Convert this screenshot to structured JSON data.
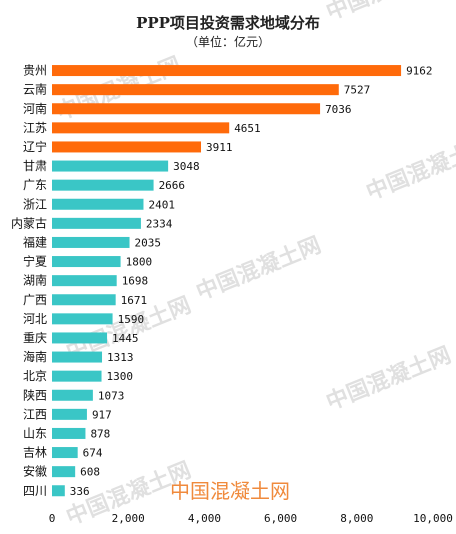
{
  "chart_data": {
    "type": "bar",
    "orientation": "horizontal",
    "title": "PPP项目投资需求地域分布",
    "subtitle": "（单位：亿元）",
    "xlim": [
      0,
      10000
    ],
    "xticks": [
      "0",
      "2,000",
      "4,000",
      "6,000",
      "8,000",
      "10,000"
    ],
    "xtick_values": [
      0,
      2000,
      4000,
      6000,
      8000,
      10000
    ],
    "categories": [
      "贵州",
      "云南",
      "河南",
      "江苏",
      "辽宁",
      "甘肃",
      "广东",
      "浙江",
      "内蒙古",
      "福建",
      "宁夏",
      "湖南",
      "广西",
      "河北",
      "重庆",
      "海南",
      "北京",
      "陕西",
      "江西",
      "山东",
      "吉林",
      "安徽",
      "四川"
    ],
    "values": [
      9162,
      7527,
      7036,
      4651,
      3911,
      3048,
      2666,
      2401,
      2334,
      2035,
      1800,
      1698,
      1671,
      1590,
      1445,
      1313,
      1300,
      1073,
      917,
      878,
      674,
      608,
      336
    ],
    "highlight_count": 5,
    "colors": {
      "highlight": "#ff6a0a",
      "normal": "#3ac6c6"
    },
    "grid": false
  },
  "watermark": {
    "text": "中国混凝土网"
  }
}
